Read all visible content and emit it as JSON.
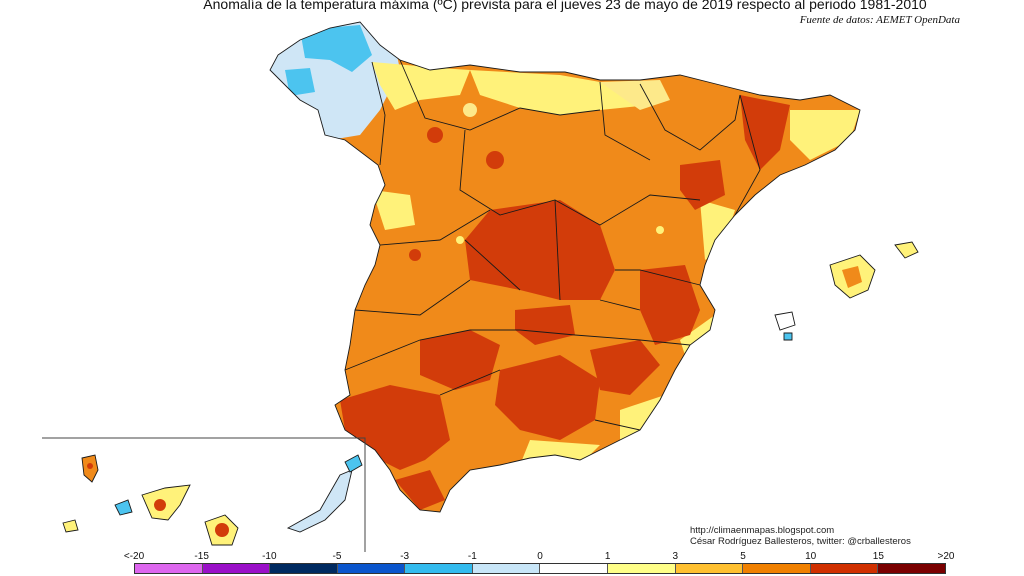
{
  "title": "Anomalía de la temperatura máxima (ºC) prevista para el jueves 23 de mayo de 2019 respecto al periodo 1981-2010",
  "source": "Fuente de datos: AEMET OpenData",
  "credits": {
    "url": "http://climaenmapas.blogspot.com",
    "author": "César Rodríguez Ballesteros, twitter: @crballesteros"
  },
  "legend": {
    "labels": [
      "<-20",
      "-15",
      "-10",
      "-5",
      "-3",
      "-1",
      "0",
      "1",
      "3",
      "5",
      "10",
      "15",
      ">20"
    ],
    "colors": [
      "#dd66ee",
      "#9a10c8",
      "#002a60",
      "#0a55cc",
      "#33bbee",
      "#c8e6f8",
      "#ffffff",
      "#ffff88",
      "#ffc030",
      "#f08000",
      "#d03000",
      "#7a0000",
      "#5a3000"
    ]
  },
  "colors": {
    "orange": "#f08a1a",
    "dark_orange": "#d23c0a",
    "yellow": "#fff27a",
    "light_yellow": "#fde98a",
    "light_blue": "#cfe6f6",
    "cyan": "#4cc4ef",
    "border": "#1a1a1a"
  }
}
